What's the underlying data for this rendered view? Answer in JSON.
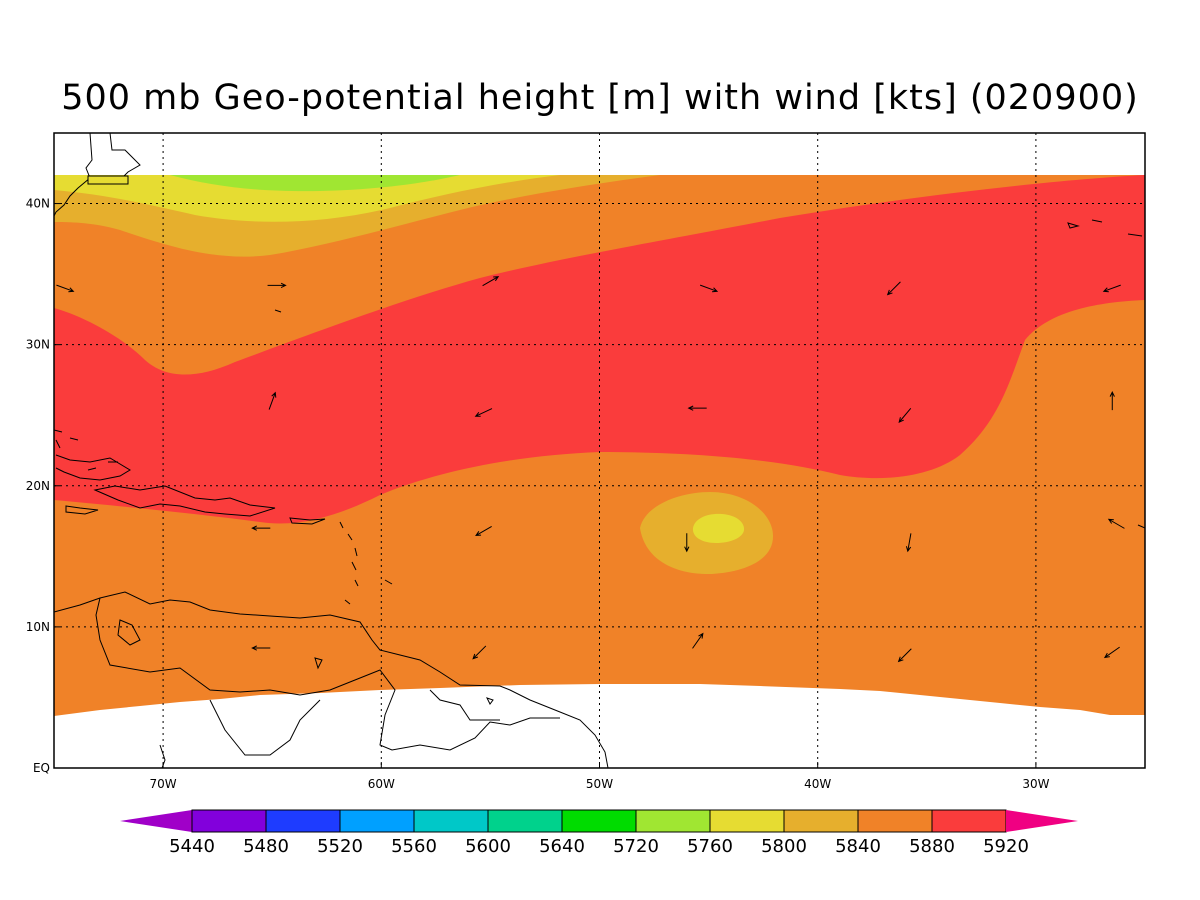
{
  "title": "500 mb Geo-potential height [m] with wind [kts] (020900)",
  "map": {
    "lon_range": [
      -75,
      -25
    ],
    "lat_range": [
      0,
      45
    ],
    "lon_ticks": [
      {
        "lon": -70,
        "label": "70W"
      },
      {
        "lon": -60,
        "label": "60W"
      },
      {
        "lon": -50,
        "label": "50W"
      },
      {
        "lon": -40,
        "label": "40W"
      },
      {
        "lon": -30,
        "label": "30W"
      }
    ],
    "lat_ticks": [
      {
        "lat": 0,
        "label": "EQ"
      },
      {
        "lat": 10,
        "label": "10N"
      },
      {
        "lat": 20,
        "label": "20N"
      },
      {
        "lat": 30,
        "label": "30N"
      },
      {
        "lat": 40,
        "label": "40N"
      }
    ],
    "grid": "dotted"
  },
  "colorbar": {
    "levels": [
      "5440",
      "5480",
      "5520",
      "5560",
      "5600",
      "5640",
      "5720",
      "5760",
      "5800",
      "5840",
      "5880",
      "5920"
    ],
    "colors": [
      "#a000c8",
      "#8200dc",
      "#1e3cff",
      "#00a0ff",
      "#00c8c8",
      "#00d28c",
      "#00dc00",
      "#a0e632",
      "#e6dc32",
      "#e6af2d",
      "#f08228",
      "#fa3c3c",
      "#f00082"
    ]
  },
  "contour_colors": {
    "h5720": "#a0e632",
    "h5760": "#e6dc32",
    "h5800": "#e6af2d",
    "h5840": "#f08228",
    "h5880": "#fa3c3c"
  },
  "wind_vectors": [
    {
      "lon": -64.8,
      "lat": 34.2,
      "dir_deg": 90
    },
    {
      "lon": -55,
      "lat": 34.5,
      "dir_deg": 60
    },
    {
      "lon": -45,
      "lat": 34.0,
      "dir_deg": 110
    },
    {
      "lon": -36.5,
      "lat": 34.0,
      "dir_deg": 225
    },
    {
      "lon": -26.5,
      "lat": 34.0,
      "dir_deg": 250
    },
    {
      "lon": -74.5,
      "lat": 34.0,
      "dir_deg": 110
    },
    {
      "lon": -65,
      "lat": 26.0,
      "dir_deg": 20
    },
    {
      "lon": -55.3,
      "lat": 25.2,
      "dir_deg": 245
    },
    {
      "lon": -45.5,
      "lat": 25.5,
      "dir_deg": 270
    },
    {
      "lon": -36,
      "lat": 25.0,
      "dir_deg": 220
    },
    {
      "lon": -26.5,
      "lat": 26.0,
      "dir_deg": 0
    },
    {
      "lon": -65.5,
      "lat": 17.0,
      "dir_deg": 270
    },
    {
      "lon": -55.3,
      "lat": 16.8,
      "dir_deg": 240
    },
    {
      "lon": -46,
      "lat": 16.0,
      "dir_deg": 180
    },
    {
      "lon": -35.8,
      "lat": 16.0,
      "dir_deg": 190
    },
    {
      "lon": -26.3,
      "lat": 17.3,
      "dir_deg": 300
    },
    {
      "lon": -65.5,
      "lat": 8.5,
      "dir_deg": 270
    },
    {
      "lon": -55.5,
      "lat": 8.2,
      "dir_deg": 225
    },
    {
      "lon": -45.5,
      "lat": 9.0,
      "dir_deg": 35
    },
    {
      "lon": -36,
      "lat": 8.0,
      "dir_deg": 225
    },
    {
      "lon": -26.5,
      "lat": 8.2,
      "dir_deg": 235
    }
  ]
}
